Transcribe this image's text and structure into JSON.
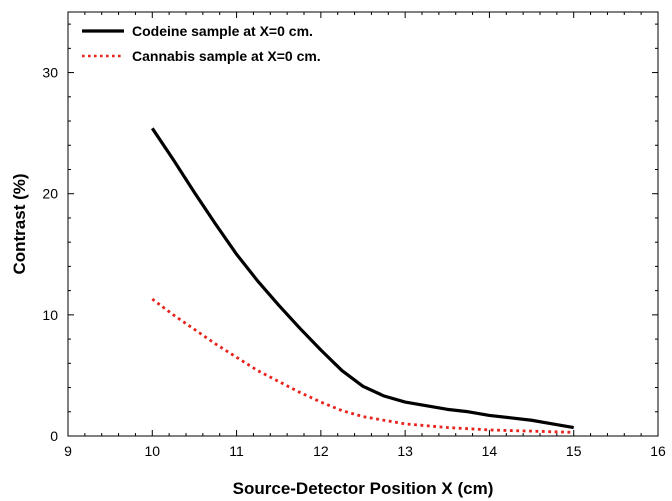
{
  "chart_data": {
    "type": "line",
    "title": "",
    "xlabel": "Source-Detector Position X (cm)",
    "ylabel": "Contrast (%)",
    "xlim": [
      9,
      16
    ],
    "ylim": [
      0,
      35
    ],
    "xticks": [
      9,
      10,
      11,
      12,
      13,
      14,
      15,
      16
    ],
    "yticks": [
      0,
      10,
      20,
      30
    ],
    "grid": false,
    "legend_position": "top-left",
    "series": [
      {
        "name": "Codeine sample at X=0 cm.",
        "color": "#000000",
        "style": "solid",
        "x": [
          10,
          10.25,
          10.5,
          10.75,
          11,
          11.25,
          11.5,
          11.75,
          12,
          12.25,
          12.5,
          12.75,
          13,
          13.25,
          13.5,
          13.75,
          14,
          14.25,
          14.5,
          14.75,
          15
        ],
        "y": [
          25.4,
          22.8,
          20.1,
          17.5,
          15.0,
          12.8,
          10.8,
          8.9,
          7.1,
          5.4,
          4.1,
          3.3,
          2.8,
          2.5,
          2.2,
          2.0,
          1.7,
          1.5,
          1.3,
          1.0,
          0.7
        ]
      },
      {
        "name": "Cannabis sample at X=0 cm.",
        "color": "#e8211a",
        "style": "dotted",
        "x": [
          10,
          10.25,
          10.5,
          10.75,
          11,
          11.25,
          11.5,
          11.75,
          12,
          12.25,
          12.5,
          12.75,
          13,
          13.25,
          13.5,
          13.75,
          14,
          14.25,
          14.5,
          14.75,
          15
        ],
        "y": [
          11.3,
          10.0,
          8.8,
          7.6,
          6.5,
          5.4,
          4.5,
          3.6,
          2.8,
          2.1,
          1.6,
          1.3,
          1.0,
          0.85,
          0.7,
          0.6,
          0.5,
          0.45,
          0.4,
          0.35,
          0.3
        ]
      }
    ]
  }
}
